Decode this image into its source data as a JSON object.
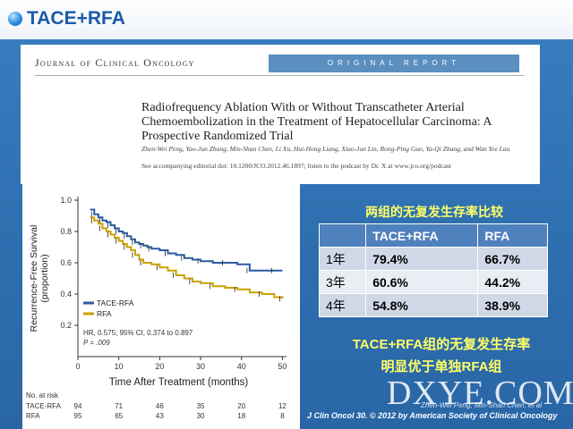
{
  "slide": {
    "title": "TACE+RFA"
  },
  "paper": {
    "journal": "Journal of Clinical Oncology",
    "section": "ORIGINAL REPORT",
    "title": "Radiofrequency Ablation With or Without Transcatheter Arterial Chemoembolization in the Treatment of Hepatocellular Carcinoma: A Prospective Randomized Trial",
    "authors": "Zhen-Wei Peng, Yao-Jun Zhang, Min-Shan Chen, Li Xu, Hui-Hong Liang, Xiao-Jun Lin, Rong-Ping Guo, Ya-Qi Zhang, and Wan Yee Lau",
    "editorial": "See accompanying editorial doi: 10.1200/JCO.2012.46.1897; listen to the podcast by Dr. X at www.jco.org/podcast"
  },
  "chart_data": {
    "type": "line",
    "xlabel": "Time After Treatment (months)",
    "ylabel": "Recurrence-Free Survival (proportion)",
    "xlim": [
      0,
      51
    ],
    "ylim": [
      0,
      1.0
    ],
    "x_ticks": [
      "0",
      "10",
      "20",
      "30",
      "40",
      "50"
    ],
    "y_ticks": [
      "0.2",
      "0.4",
      "0.6",
      "0.8",
      "1.0"
    ],
    "step": true,
    "legend": [
      "TACE-RFA",
      "RFA"
    ],
    "legend_position": "middle-left",
    "stats": [
      "HR, 0.575; 95% CI, 0.374 to 0.897",
      "P = .009"
    ],
    "series": [
      {
        "name": "TACE-RFA",
        "color": "#2c5aa0",
        "x": [
          3,
          4,
          5,
          6,
          7,
          8,
          9,
          10,
          11,
          12,
          13,
          14,
          15,
          16,
          17,
          18,
          20,
          22,
          24,
          26,
          28,
          30,
          33,
          36,
          39,
          42,
          45,
          48,
          50
        ],
        "y": [
          0.94,
          0.91,
          0.89,
          0.87,
          0.86,
          0.84,
          0.82,
          0.8,
          0.79,
          0.77,
          0.75,
          0.73,
          0.72,
          0.71,
          0.7,
          0.69,
          0.68,
          0.66,
          0.65,
          0.63,
          0.62,
          0.61,
          0.6,
          0.6,
          0.59,
          0.55,
          0.55,
          0.55,
          0.55
        ]
      },
      {
        "name": "RFA",
        "color": "#c9a100",
        "x": [
          3,
          4,
          5,
          6,
          7,
          8,
          9,
          10,
          11,
          12,
          13,
          14,
          15,
          16,
          18,
          20,
          22,
          24,
          26,
          28,
          30,
          33,
          36,
          39,
          42,
          45,
          48,
          50
        ],
        "y": [
          0.89,
          0.87,
          0.85,
          0.82,
          0.8,
          0.78,
          0.76,
          0.74,
          0.72,
          0.7,
          0.68,
          0.65,
          0.62,
          0.6,
          0.59,
          0.57,
          0.55,
          0.52,
          0.5,
          0.48,
          0.47,
          0.45,
          0.44,
          0.43,
          0.41,
          0.4,
          0.38,
          0.37
        ]
      }
    ],
    "at_risk": {
      "title": "No. at risk",
      "times": [
        0,
        10,
        20,
        30,
        40,
        50
      ],
      "rows": [
        {
          "label": "TACE-RFA",
          "values": [
            "94",
            "71",
            "46",
            "35",
            "20",
            "12"
          ]
        },
        {
          "label": "RFA",
          "values": [
            "95",
            "65",
            "43",
            "30",
            "18",
            "8"
          ]
        }
      ]
    }
  },
  "table": {
    "heading": "两组的无复发生存率比较",
    "columns": [
      "",
      "TACE+RFA",
      "RFA"
    ],
    "rows": [
      {
        "label": "1年",
        "tace_rfa": "79.4%",
        "rfa": "66.7%"
      },
      {
        "label": "3年",
        "tace_rfa": "60.6%",
        "rfa": "44.2%"
      },
      {
        "label": "4年",
        "tace_rfa": "54.8%",
        "rfa": "38.9%"
      }
    ]
  },
  "conclusion": {
    "line1": "TACE+RFA组的无复发生存率",
    "line2": "明显优于单独RFA组"
  },
  "footer": {
    "watermark": "DXYE.COM",
    "authors": "Zhen-Wei Peng, Min-Shan Chen, et al",
    "citation": "J Clin Oncol 30. © 2012 by American Society of Clinical Oncology"
  }
}
